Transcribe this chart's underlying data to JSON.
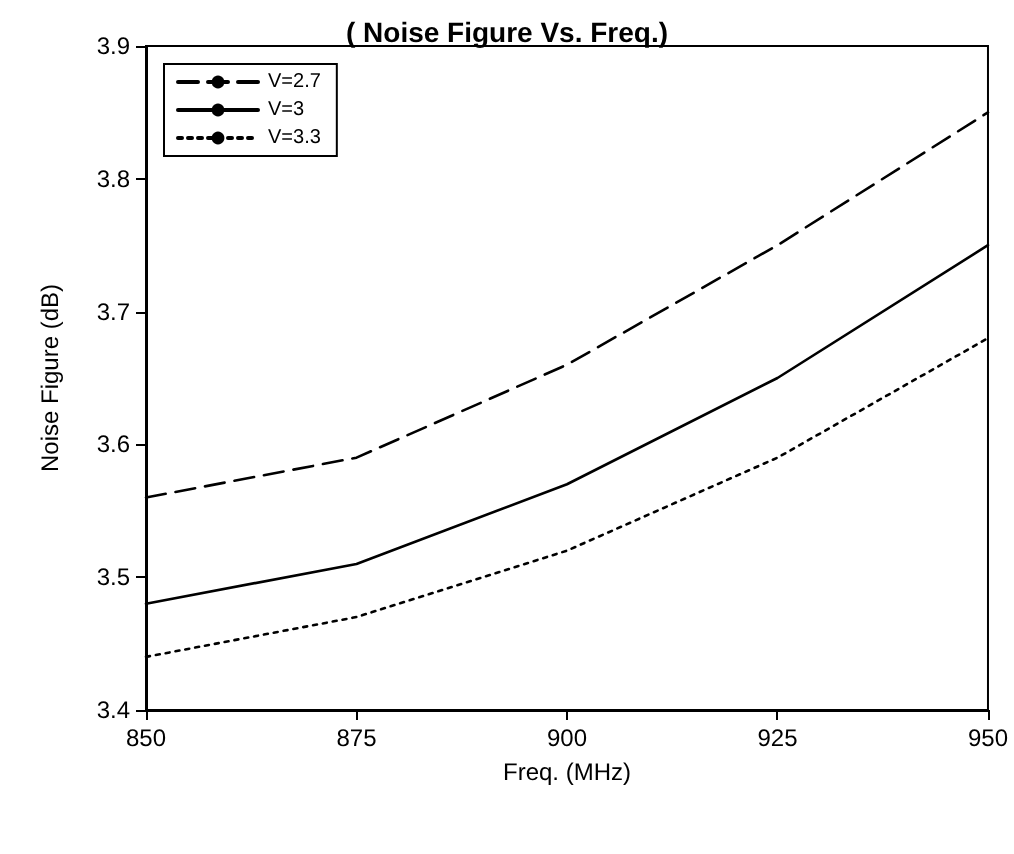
{
  "chart_data": {
    "type": "line",
    "title": "( Noise Figure Vs. Freq.)",
    "xlabel": "Freq. (MHz)",
    "ylabel": "Noise Figure (dB)",
    "x": [
      850,
      875,
      900,
      925,
      950
    ],
    "series": [
      {
        "name": "V=2.7",
        "color": "#000000",
        "line_style": "dashed",
        "values": [
          3.56,
          3.59,
          3.66,
          3.75,
          3.85
        ]
      },
      {
        "name": "V=3",
        "color": "#000000",
        "line_style": "solid",
        "values": [
          3.48,
          3.51,
          3.57,
          3.65,
          3.75
        ]
      },
      {
        "name": "V=3.3",
        "color": "#000000",
        "line_style": "dotted",
        "values": [
          3.44,
          3.47,
          3.52,
          3.59,
          3.68
        ]
      }
    ],
    "xlim": [
      850,
      950
    ],
    "xticks": [
      850,
      875,
      900,
      925,
      950
    ],
    "ylim": [
      3.4,
      3.9
    ],
    "yticks": [
      3.4,
      3.5,
      3.6,
      3.7,
      3.8,
      3.9
    ],
    "grid": false,
    "legend": "top left",
    "marker": "none"
  }
}
